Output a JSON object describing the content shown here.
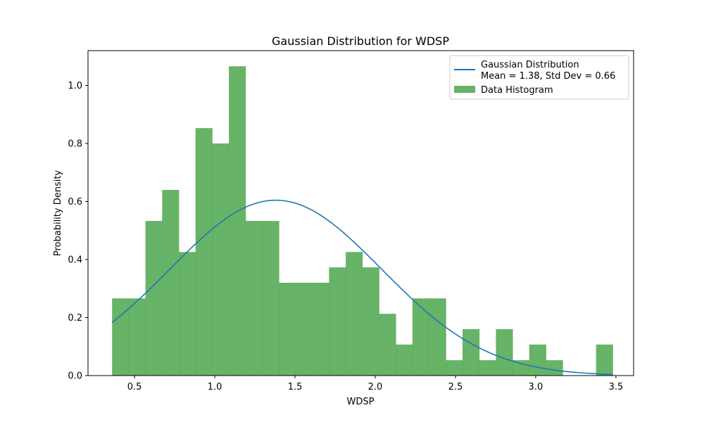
{
  "chart_data": {
    "type": "bar",
    "title": "Gaussian Distribution for WDSP",
    "xlabel": "WDSP",
    "ylabel": "Probability Density",
    "xlim": [
      0.21,
      3.61
    ],
    "ylim": [
      0,
      1.12
    ],
    "x_ticks": [
      "0.5",
      "1.0",
      "1.5",
      "2.0",
      "2.5",
      "3.0",
      "3.5"
    ],
    "x_tick_values": [
      0.5,
      1.0,
      1.5,
      2.0,
      2.5,
      3.0,
      3.5
    ],
    "y_ticks": [
      "0.0",
      "0.2",
      "0.4",
      "0.6",
      "0.8",
      "1.0"
    ],
    "y_tick_values": [
      0.0,
      0.2,
      0.4,
      0.6,
      0.8,
      1.0
    ],
    "grid": false,
    "legend_position": "top-right",
    "histogram": {
      "name": "Data Histogram",
      "color": "#4ca64c",
      "opacity": 0.85,
      "bin_edges": [
        0.36,
        0.464,
        0.568,
        0.672,
        0.776,
        0.88,
        0.984,
        1.088,
        1.192,
        1.296,
        1.4,
        1.504,
        1.608,
        1.712,
        1.816,
        1.92,
        2.024,
        2.128,
        2.232,
        2.336,
        2.44,
        2.544,
        2.648,
        2.752,
        2.856,
        2.96,
        3.064,
        3.168,
        3.272,
        3.376,
        3.48
      ],
      "densities": [
        0.266,
        0.266,
        0.533,
        0.64,
        0.426,
        0.853,
        0.8,
        1.066,
        0.533,
        0.533,
        0.32,
        0.32,
        0.32,
        0.373,
        0.426,
        0.373,
        0.213,
        0.107,
        0.266,
        0.266,
        0.053,
        0.16,
        0.053,
        0.16,
        0.053,
        0.107,
        0.053,
        0.0,
        0.0,
        0.107
      ]
    },
    "series": [
      {
        "name": "Gaussian Distribution\nMean = 1.38, Std Dev = 0.66",
        "label_lines": [
          "Gaussian Distribution",
          "Mean = 1.38, Std Dev = 0.66"
        ],
        "type": "line",
        "color": "#1f77b4",
        "mean": 1.38,
        "std": 0.66,
        "x_range": [
          0.36,
          3.48
        ]
      }
    ]
  }
}
